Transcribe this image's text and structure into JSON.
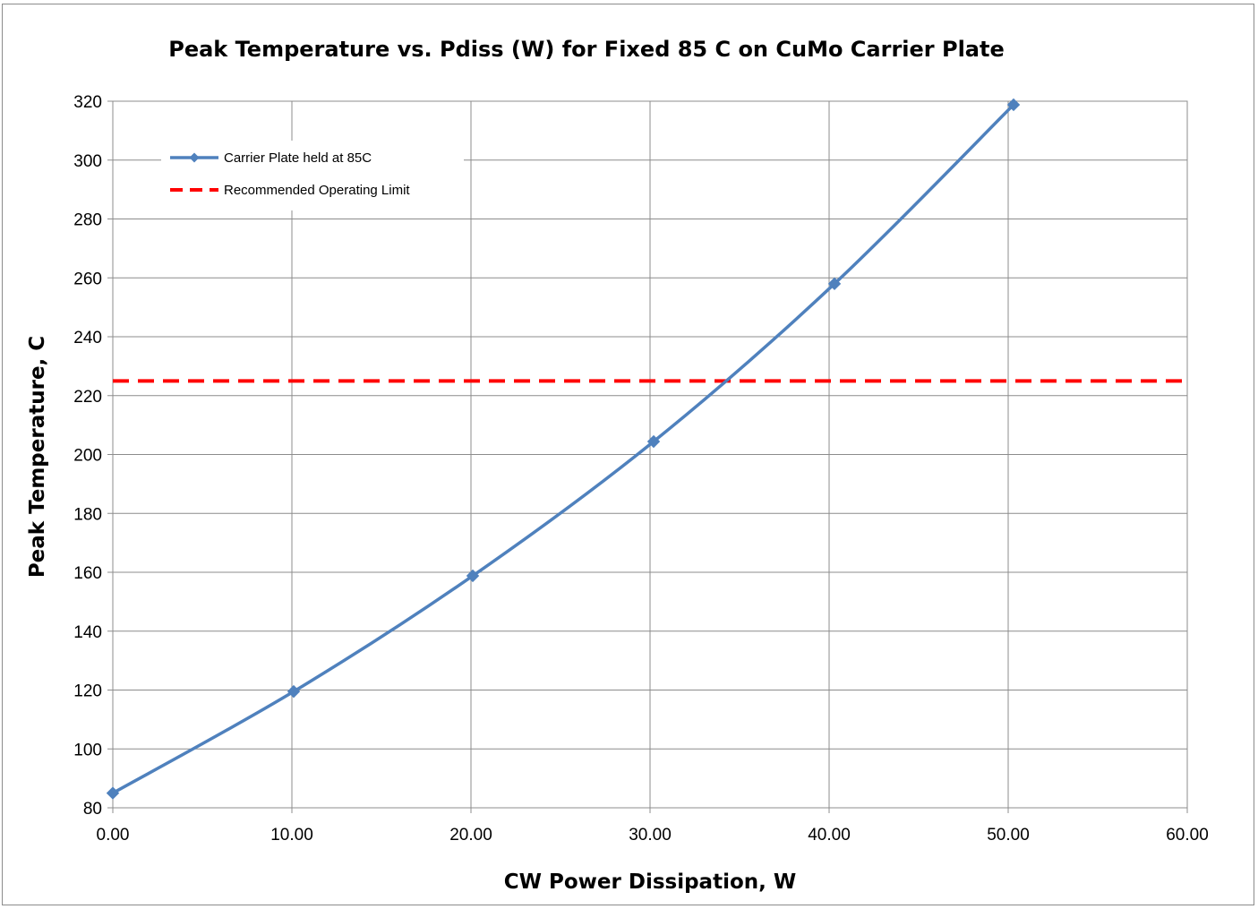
{
  "chart_data": {
    "type": "line",
    "title": "Peak Temperature vs. Pdiss (W) for Fixed 85 C on CuMo Carrier Plate",
    "xlabel": "CW Power Dissipation, W",
    "ylabel": "Peak Temperature, C",
    "xlim": [
      0,
      60
    ],
    "ylim": [
      80,
      320
    ],
    "x_ticks": [
      "0.00",
      "10.00",
      "20.00",
      "30.00",
      "40.00",
      "50.00",
      "60.00"
    ],
    "y_ticks": [
      "80",
      "100",
      "120",
      "140",
      "160",
      "180",
      "200",
      "220",
      "240",
      "260",
      "280",
      "300",
      "320"
    ],
    "grid": true,
    "legend_position": "top-left",
    "series": [
      {
        "name": "Carrier Plate held at 85C",
        "color": "#4F81BD",
        "marker": "diamond",
        "x": [
          0.0,
          10.1,
          20.1,
          30.2,
          40.3,
          50.3
        ],
        "y": [
          85,
          119.5,
          158.8,
          204.4,
          258,
          318.8
        ]
      },
      {
        "name": "Recommended Operating Limit",
        "color": "#FF0000",
        "style": "dashed",
        "x": [
          0,
          60
        ],
        "y": [
          225,
          225
        ]
      }
    ]
  }
}
